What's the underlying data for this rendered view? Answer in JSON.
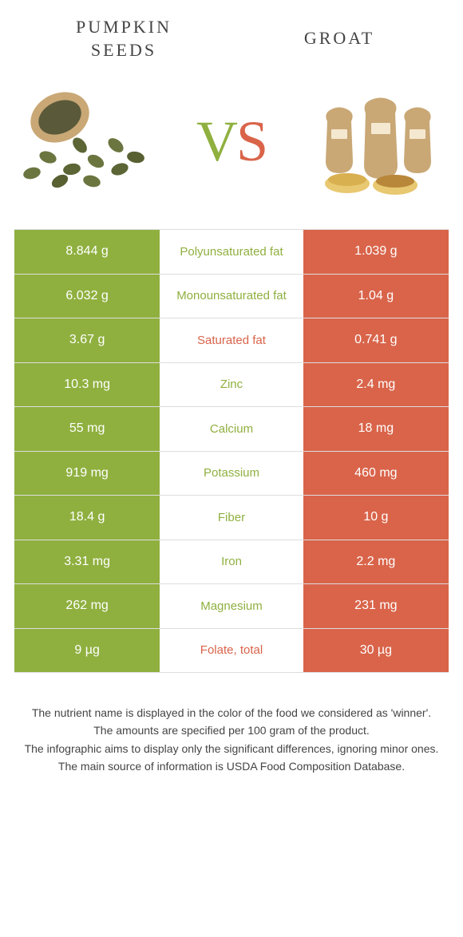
{
  "colors": {
    "left": "#8fb03f",
    "right": "#d9644a",
    "text": "#444444",
    "border": "#dddddd",
    "white": "#ffffff"
  },
  "header": {
    "left_line1": "PUMPKIN",
    "left_line2": "SEEDS",
    "right": "GROAT",
    "vs_v": "V",
    "vs_s": "S"
  },
  "rows": [
    {
      "left": "8.844 g",
      "label": "Polyunsaturated fat",
      "right": "1.039 g",
      "winner": "left"
    },
    {
      "left": "6.032 g",
      "label": "Monounsaturated fat",
      "right": "1.04 g",
      "winner": "left"
    },
    {
      "left": "3.67 g",
      "label": "Saturated fat",
      "right": "0.741 g",
      "winner": "right"
    },
    {
      "left": "10.3 mg",
      "label": "Zinc",
      "right": "2.4 mg",
      "winner": "left"
    },
    {
      "left": "55 mg",
      "label": "Calcium",
      "right": "18 mg",
      "winner": "left"
    },
    {
      "left": "919 mg",
      "label": "Potassium",
      "right": "460 mg",
      "winner": "left"
    },
    {
      "left": "18.4 g",
      "label": "Fiber",
      "right": "10 g",
      "winner": "left"
    },
    {
      "left": "3.31 mg",
      "label": "Iron",
      "right": "2.2 mg",
      "winner": "left"
    },
    {
      "left": "262 mg",
      "label": "Magnesium",
      "right": "231 mg",
      "winner": "left"
    },
    {
      "left": "9 µg",
      "label": "Folate, total",
      "right": "30 µg",
      "winner": "right"
    }
  ],
  "footnotes": {
    "line1": "The nutrient name is displayed in the color of the food we considered as 'winner'.",
    "line2": "The amounts are specified per 100 gram of the product.",
    "line3": "The infographic aims to display only the significant differences, ignoring minor ones.",
    "line4": "The main source of information is USDA Food Composition Database."
  },
  "images": {
    "left_alt": "pumpkin-seeds-image",
    "right_alt": "groat-sacks-image"
  }
}
